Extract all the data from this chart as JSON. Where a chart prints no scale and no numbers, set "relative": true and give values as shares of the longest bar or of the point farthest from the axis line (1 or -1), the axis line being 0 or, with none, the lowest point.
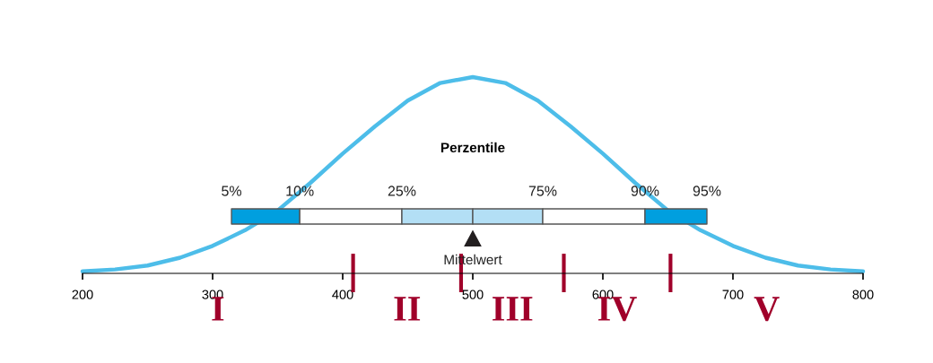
{
  "chart_data": {
    "type": "line",
    "relative": true,
    "title": "Perzentile",
    "xlim": [
      200,
      800
    ],
    "xticks": [
      200,
      300,
      400,
      500,
      600,
      700,
      800
    ],
    "tick_labels": "x",
    "grid": false,
    "marker": "none",
    "line_style": "solid",
    "series": [
      {
        "color": "#4dbde9",
        "x": [
          200,
          225,
          250,
          275,
          300,
          325,
          350,
          375,
          400,
          425,
          450,
          475,
          500,
          525,
          550,
          575,
          600,
          625,
          650,
          675,
          700,
          725,
          750,
          775,
          800
        ],
        "values": [
          0.01,
          0.02,
          0.04,
          0.08,
          0.14,
          0.22,
          0.32,
          0.46,
          0.61,
          0.75,
          0.88,
          0.97,
          1,
          0.97,
          0.88,
          0.75,
          0.61,
          0.46,
          0.32,
          0.22,
          0.14,
          0.08,
          0.04,
          0.02,
          0.01
        ]
      }
    ],
    "bands": [
      {
        "axis": "x",
        "from": 314.5,
        "to": 367,
        "color": "#009fdf"
      },
      {
        "axis": "x",
        "from": 367,
        "to": 445.5,
        "color": "#ffffff"
      },
      {
        "axis": "x",
        "from": 445.5,
        "to": 500,
        "color": "#b3dff5"
      },
      {
        "axis": "x",
        "from": 500,
        "to": 553.8,
        "color": "#b3dff5"
      },
      {
        "axis": "x",
        "from": 553.8,
        "to": 632.4,
        "color": "#ffffff"
      },
      {
        "axis": "x",
        "from": 632.4,
        "to": 680,
        "color": "#009fdf"
      }
    ],
    "ref_lines": [
      {
        "axis": "x",
        "value": 408,
        "color": "#a0002a"
      },
      {
        "axis": "x",
        "value": 491,
        "color": "#a0002a"
      },
      {
        "axis": "x",
        "value": 570,
        "color": "#a0002a"
      },
      {
        "axis": "x",
        "value": 652,
        "color": "#a0002a"
      }
    ],
    "annotations": [
      "5%",
      "10%",
      "25%",
      "75%",
      "90%",
      "95%",
      "Mittelwert",
      "I",
      "II",
      "III",
      "IV",
      "V"
    ]
  }
}
